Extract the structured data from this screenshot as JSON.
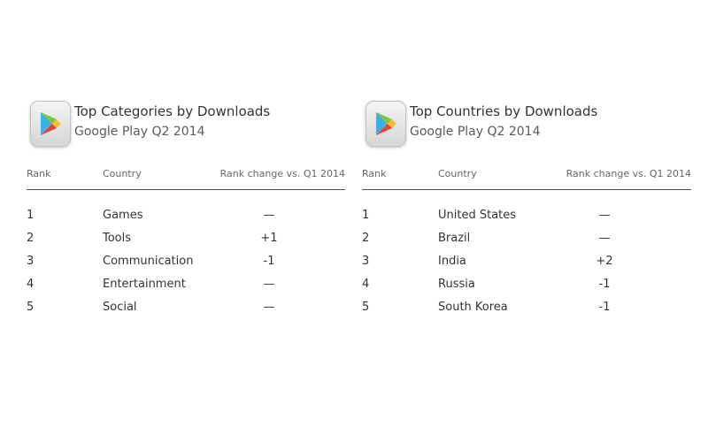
{
  "left": {
    "title": "Top Categories by Downloads",
    "subtitle": "Google Play Q2 2014",
    "headers": {
      "rank": "Rank",
      "name": "Country",
      "change": "Rank change vs. Q1 2014"
    },
    "rows": [
      {
        "rank": "1",
        "name": "Games",
        "change": "—"
      },
      {
        "rank": "2",
        "name": "Tools",
        "change": "+1"
      },
      {
        "rank": "3",
        "name": "Communication",
        "change": "-1"
      },
      {
        "rank": "4",
        "name": "Entertainment",
        "change": "—"
      },
      {
        "rank": "5",
        "name": "Social",
        "change": "—"
      }
    ]
  },
  "right": {
    "title": "Top Countries by Downloads",
    "subtitle": "Google Play Q2 2014",
    "headers": {
      "rank": "Rank",
      "name": "Country",
      "change": "Rank change vs. Q1 2014"
    },
    "rows": [
      {
        "rank": "1",
        "name": "United States",
        "change": "—"
      },
      {
        "rank": "2",
        "name": "Brazil",
        "change": "—"
      },
      {
        "rank": "3",
        "name": "India",
        "change": "+2"
      },
      {
        "rank": "4",
        "name": "Russia",
        "change": "-1"
      },
      {
        "rank": "5",
        "name": "South Korea",
        "change": "-1"
      }
    ]
  }
}
